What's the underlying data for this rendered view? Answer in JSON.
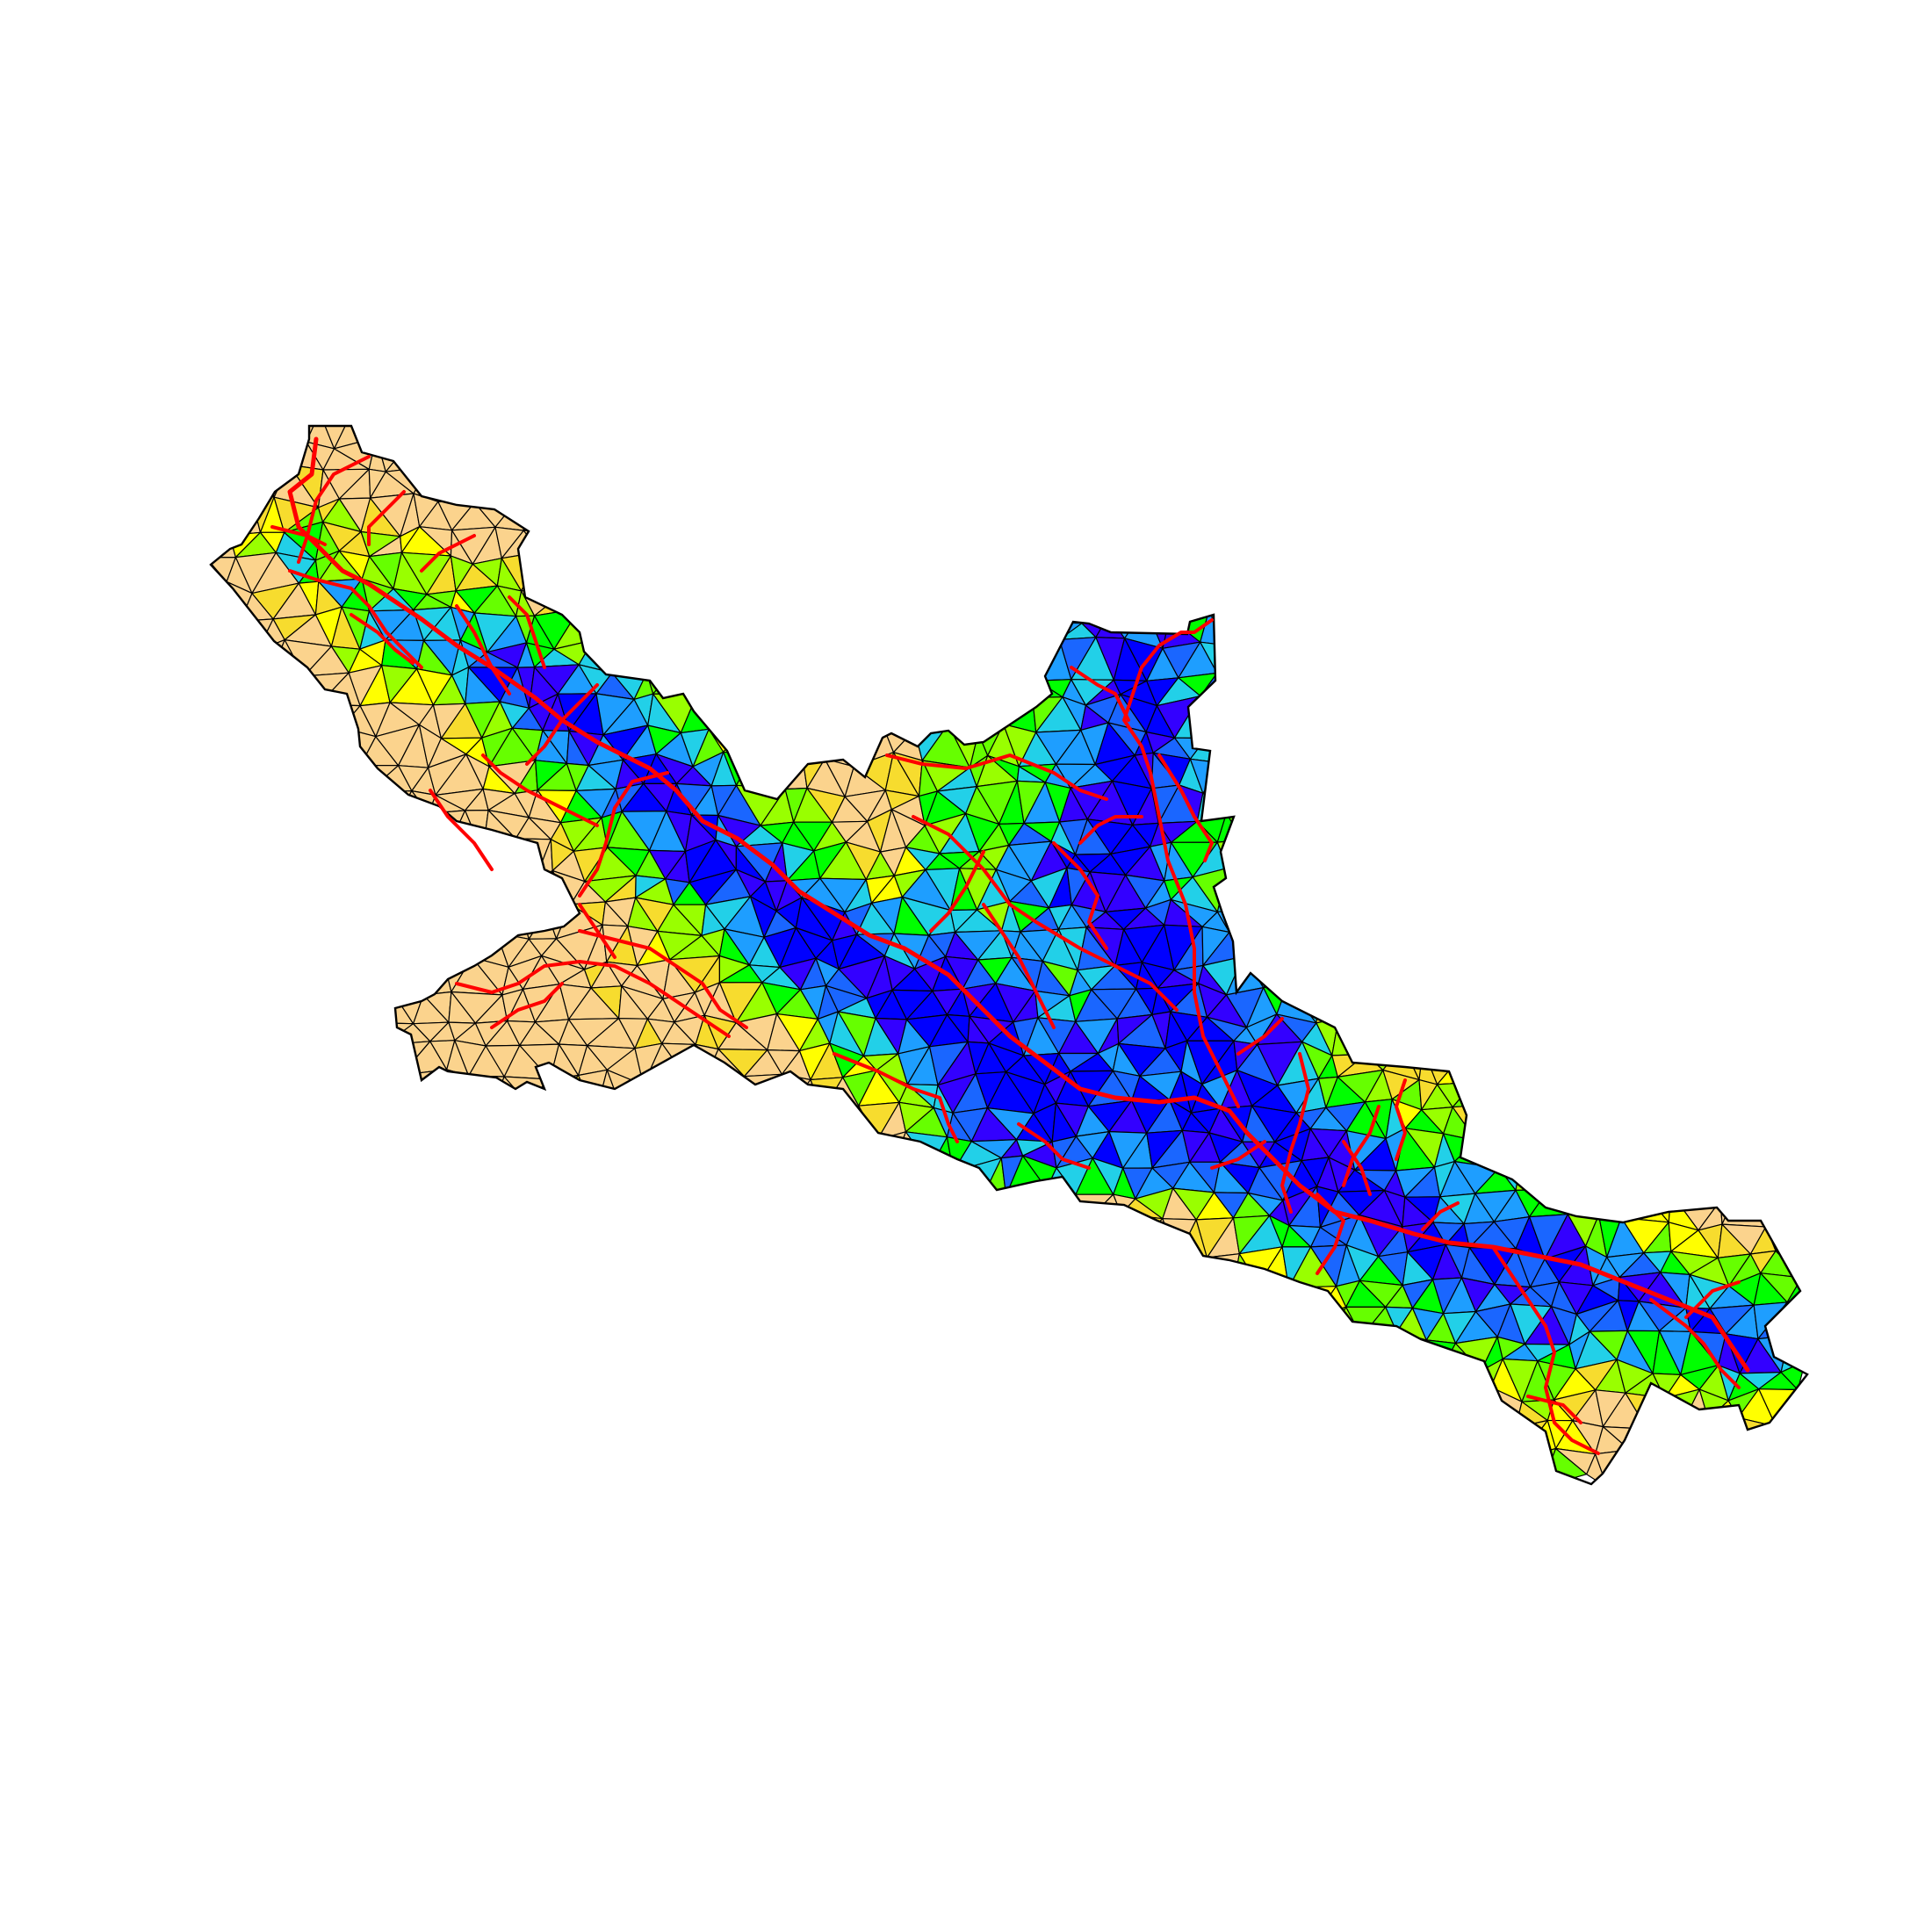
{
  "map": {
    "kind": "triangulated catchment mesh with stream network",
    "colors": {
      "background": "#ffffff",
      "mesh_edge": "#000000",
      "stream": "#ff0000",
      "ramp": [
        "#0000ff",
        "#3300ff",
        "#1a66ff",
        "#1e9eff",
        "#22d0e8",
        "#00ff00",
        "#66ff00",
        "#99ff00",
        "#ffff00",
        "#f7dc2e",
        "#fbd38d"
      ]
    },
    "color_zones": [
      {
        "zone": "upstream-west",
        "dominant": [
          "#fbd38d",
          "#f7dc2e",
          "#ffff00"
        ]
      },
      {
        "zone": "western-valley",
        "dominant": [
          "#66ff00",
          "#00ff00",
          "#99ff00"
        ]
      },
      {
        "zone": "central-north-lobe",
        "dominant": [
          "#0000ff",
          "#3300ff",
          "#1a66ff"
        ]
      },
      {
        "zone": "main-channel",
        "dominant": [
          "#0000ff",
          "#1e9eff",
          "#22d0e8"
        ]
      },
      {
        "zone": "south-east-tail",
        "dominant": [
          "#66ff00",
          "#99ff00",
          "#ffff00"
        ]
      }
    ]
  }
}
